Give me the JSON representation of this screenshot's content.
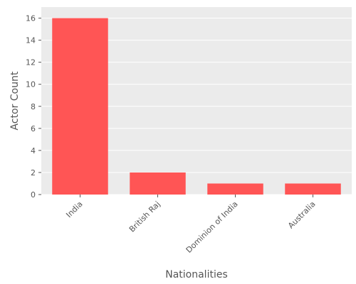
{
  "chart_data": {
    "type": "bar",
    "title": "",
    "xlabel": "Nationalities",
    "ylabel": "Actor Count",
    "categories": [
      "India",
      "British Raj",
      "Dominion of India",
      "Australia"
    ],
    "values": [
      16,
      2,
      1,
      1
    ],
    "ylim": [
      0,
      17
    ],
    "yticks": [
      0,
      2,
      4,
      6,
      8,
      10,
      12,
      14,
      16
    ],
    "grid": true,
    "bar_color": "#ff5555",
    "background_color": "#ebebeb",
    "grid_color": "#ffffff"
  }
}
